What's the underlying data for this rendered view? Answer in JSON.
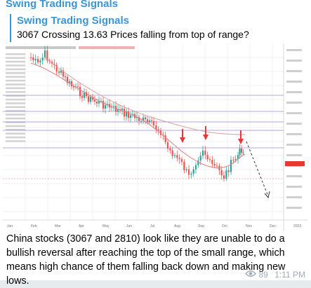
{
  "message": {
    "channel_name": "Swing Trading Signals",
    "reply": {
      "title": "Swing Trading Signals",
      "text": "3067 Crossing 13.63 Prices falling from top of range?"
    },
    "caption": "China stocks (3067 and 2810) look like they are unable to do a bullish reversal after reaching the top of the small range, which means high chance of them falling back down and making new lows.",
    "views": "89",
    "time": "1:11 PM",
    "icons": {
      "views": "eye-icon"
    }
  },
  "colors": {
    "accent": "#3a95d5",
    "up_candle": "#26a69a",
    "down_candle": "#ef5350",
    "level_line": "#9c88d9",
    "ma_line": "#e08080",
    "signal_arrow": "#e53935"
  },
  "chart_data": {
    "type": "candlestick",
    "x_ticks": [
      "Jan",
      "Feb",
      "Mar",
      "Apr",
      "May",
      "Jun",
      "Jul",
      "Aug",
      "Sep",
      "Oct",
      "Nov",
      "Dec",
      "2023"
    ],
    "horizontal_levels": 5,
    "signal_arrows": 3,
    "projection": "down"
  }
}
